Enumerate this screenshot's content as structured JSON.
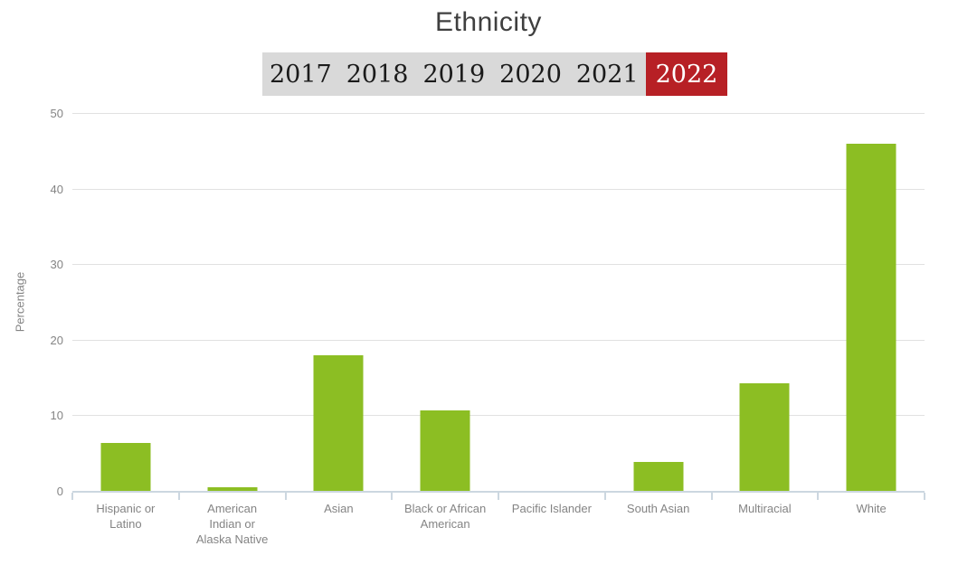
{
  "title": "Ethnicity",
  "tabs": {
    "years": [
      {
        "label": "2017",
        "selected": false
      },
      {
        "label": "2018",
        "selected": false
      },
      {
        "label": "2019",
        "selected": false
      },
      {
        "label": "2020",
        "selected": false
      },
      {
        "label": "2021",
        "selected": false
      },
      {
        "label": "2022",
        "selected": true
      }
    ]
  },
  "colors": {
    "bar_green": "#8cbe23",
    "selected_tab_red": "#b72025",
    "tab_background_gray": "#d9d9d9",
    "axis_line": "#ccd7e0",
    "grid_line": "#e1e1e1",
    "label_gray": "#848484",
    "title_gray": "#3f3f3f"
  },
  "chart_data": {
    "type": "bar",
    "title": "Ethnicity",
    "selected_year": "2022",
    "xlabel": "",
    "ylabel": "Percentage",
    "ylim": [
      0,
      50
    ],
    "yticks": [
      0,
      10,
      20,
      30,
      40,
      50
    ],
    "grid": true,
    "legend": false,
    "categories": [
      "Hispanic or Latino",
      "American Indian or Alaska Native",
      "Asian",
      "Black or African American",
      "Pacific Islander",
      "South Asian",
      "Multiracial",
      "White"
    ],
    "values": [
      6.3,
      0.5,
      18,
      10.7,
      0,
      3.8,
      14.2,
      45.9
    ],
    "bar_color": "#8cbe23"
  }
}
